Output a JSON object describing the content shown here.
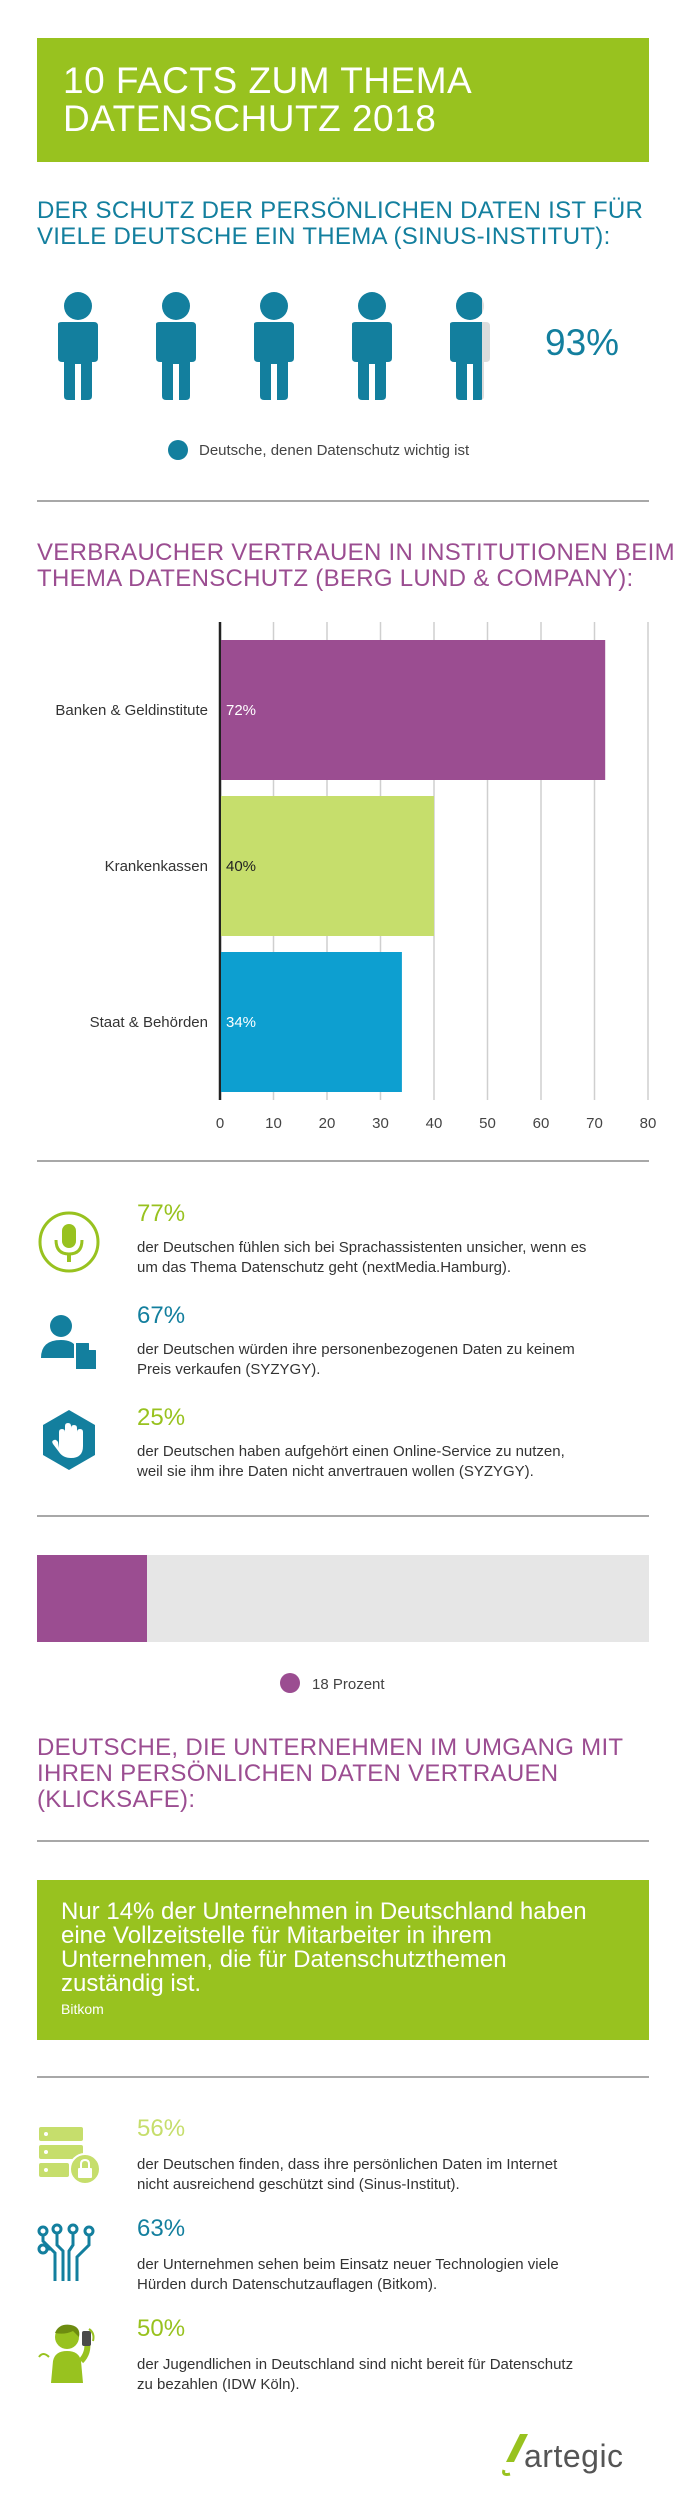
{
  "header": {
    "title_line1": "10 FACTS ZUM THEMA",
    "title_line2": "DATENSCHUTZ 2018"
  },
  "section1": {
    "heading_line1": "DER SCHUTZ DER PERSÖNLICHEN DATEN IST FÜR",
    "heading_line2": "VIELE DEUTSCHE EIN THEMA (SINUS-INSTITUT):",
    "percent_value": 93,
    "percent_label": "93%",
    "legend": "Deutsche, denen Datenschutz wichtig ist",
    "icon_color": "#137f9e"
  },
  "section2": {
    "heading_line1": "VERBRAUCHER VERTRAUEN IN INSTITUTIONEN BEIM",
    "heading_line2": "THEMA DATENSCHUTZ (BERG LUND & COMPANY):"
  },
  "chart_data": {
    "type": "bar",
    "orientation": "horizontal",
    "categories": [
      "Banken & Geldinstitute",
      "Krankenkassen",
      "Staat & Behörden"
    ],
    "values": [
      72,
      40,
      34
    ],
    "value_labels": [
      "72%",
      "40%",
      "34%"
    ],
    "colors": [
      "#9b4d91",
      "#c6de6c",
      "#0d9fd0"
    ],
    "label_colors": [
      "#ffffff",
      "#222222",
      "#ffffff"
    ],
    "xlim": [
      0,
      80
    ],
    "xticks": [
      "0",
      "10",
      "20",
      "30",
      "40",
      "50",
      "60",
      "70",
      "80"
    ],
    "grid": true,
    "title": "",
    "xlabel": "",
    "ylabel": ""
  },
  "facts_a": [
    {
      "pct": "77%",
      "text_line1": "der Deutschen fühlen sich bei Sprachassistenten unsicher, wenn es",
      "text_line2": "um das Thema Datenschutz geht (nextMedia.Hamburg).",
      "color": "#98c21f",
      "icon": "microphone-icon"
    },
    {
      "pct": "67%",
      "text_line1": "der Deutschen würden ihre personenbezogenen Daten zu keinem",
      "text_line2": "Preis verkaufen (SYZYGY).",
      "color": "#137f9e",
      "icon": "person-document-icon"
    },
    {
      "pct": "25%",
      "text_line1": "der Deutschen haben aufgehört einen Online-Service zu nutzen,",
      "text_line2": "weil sie ihm ihre Daten nicht anvertrauen wollen (SYZYGY).",
      "color": "#98c21f",
      "icon": "stop-hand-icon"
    }
  ],
  "progress": {
    "value": 18,
    "legend": "18 Prozent",
    "color": "#9b4d91",
    "track_color": "#e6e6e6"
  },
  "section3": {
    "heading_line1": "DEUTSCHE, DIE UNTERNEHMEN IM UMGANG MIT",
    "heading_line2": "IHREN PERSÖNLICHEN DATEN VERTRAUEN",
    "heading_line3": "(KLICKSAFE):"
  },
  "quote": {
    "line1": "Nur 14% der Unternehmen in Deutschland haben",
    "line2": "eine Vollzeitstelle für Mitarbeiter in ihrem",
    "line3": "Unternehmen, die für Datenschutzthemen",
    "line4": "zuständig ist.",
    "source": "Bitkom"
  },
  "facts_b": [
    {
      "pct": "56%",
      "text_line1": "der Deutschen finden, dass ihre persönlichen Daten im Internet",
      "text_line2": "nicht ausreichend geschützt sind (Sinus-Institut).",
      "color": "#c6de6c",
      "icon": "server-lock-icon"
    },
    {
      "pct": "63%",
      "text_line1": "der Unternehmen sehen beim Einsatz neuer Technologien viele",
      "text_line2": "Hürden durch Datenschutzauflagen (Bitkom).",
      "color": "#137f9e",
      "icon": "circuit-icon"
    },
    {
      "pct": "50%",
      "text_line1": "der Jugendlichen in Deutschland sind nicht bereit für Datenschutz",
      "text_line2": "zu bezahlen (IDW Köln).",
      "color": "#98c21f",
      "icon": "teen-phone-icon"
    }
  ],
  "footer": {
    "logo_text": "artegic"
  }
}
